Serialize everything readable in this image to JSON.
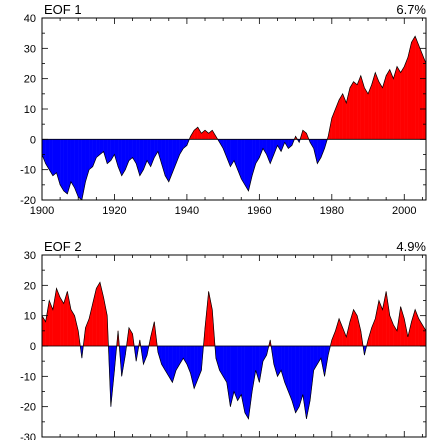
{
  "chart_data": [
    {
      "type": "area",
      "panel_title": "EOF 1",
      "variance_label": "6.7%",
      "xlim": [
        1900,
        2006
      ],
      "ylim": [
        -20,
        40
      ],
      "x_ticks": [
        1900,
        1920,
        1940,
        1960,
        1980,
        2000
      ],
      "y_ticks": [
        -20,
        -10,
        0,
        10,
        20,
        30,
        40
      ],
      "show_x_tick_labels": true,
      "positive_color": "#ff0000",
      "negative_color": "#0000ff",
      "series": [
        {
          "x": [
            1900,
            1901,
            1902,
            1903,
            1904,
            1905,
            1906,
            1907,
            1908,
            1909,
            1910,
            1911,
            1912,
            1913,
            1914,
            1915,
            1916,
            1917,
            1918,
            1919,
            1920,
            1921,
            1922,
            1923,
            1924,
            1925,
            1926,
            1927,
            1928,
            1929,
            1930,
            1931,
            1932,
            1933,
            1934,
            1935,
            1936,
            1937,
            1938,
            1939,
            1940,
            1941,
            1942,
            1943,
            1944,
            1945,
            1946,
            1947,
            1948,
            1949,
            1950,
            1951,
            1952,
            1953,
            1954,
            1955,
            1956,
            1957,
            1958,
            1959,
            1960,
            1961,
            1962,
            1963,
            1964,
            1965,
            1966,
            1967,
            1968,
            1969,
            1970,
            1971,
            1972,
            1973,
            1974,
            1975,
            1976,
            1977,
            1978,
            1979,
            1980,
            1981,
            1982,
            1983,
            1984,
            1985,
            1986,
            1987,
            1988,
            1989,
            1990,
            1991,
            1992,
            1993,
            1994,
            1995,
            1996,
            1997,
            1998,
            1999,
            2000,
            2001,
            2002,
            2003,
            2004,
            2005,
            2006
          ],
          "y": [
            -5,
            -8,
            -10,
            -12,
            -11,
            -15,
            -17,
            -18,
            -14,
            -16,
            -19,
            -20,
            -14,
            -10,
            -9,
            -6,
            -5,
            -4,
            -8,
            -7,
            -5,
            -9,
            -12,
            -10,
            -7,
            -6,
            -8,
            -12,
            -10,
            -7,
            -9,
            -6,
            -4,
            -8,
            -12,
            -14,
            -11,
            -8,
            -5,
            -3,
            -2,
            1,
            3,
            4,
            2,
            3,
            2,
            3,
            1,
            -1,
            -3,
            -6,
            -9,
            -7,
            -10,
            -13,
            -15,
            -17,
            -12,
            -8,
            -6,
            -3,
            -5,
            -8,
            -5,
            -2,
            -4,
            -1,
            -3,
            -2,
            1,
            -1,
            3,
            2,
            -1,
            -3,
            -8,
            -6,
            -3,
            1,
            7,
            10,
            13,
            15,
            12,
            17,
            19,
            18,
            21,
            17,
            15,
            18,
            22,
            19,
            17,
            21,
            23,
            20,
            24,
            22,
            24,
            27,
            32,
            34,
            31,
            28,
            25
          ]
        }
      ]
    },
    {
      "type": "area",
      "panel_title": "EOF 2",
      "variance_label": "4.9%",
      "xlim": [
        1900,
        2006
      ],
      "ylim": [
        -30,
        30
      ],
      "x_ticks": [
        1900,
        1920,
        1940,
        1960,
        1980,
        2000
      ],
      "y_ticks": [
        -30,
        -20,
        -10,
        0,
        10,
        20,
        30
      ],
      "show_x_tick_labels": false,
      "positive_color": "#ff0000",
      "negative_color": "#0000ff",
      "series": [
        {
          "x": [
            1900,
            1901,
            1902,
            1903,
            1904,
            1905,
            1906,
            1907,
            1908,
            1909,
            1910,
            1911,
            1912,
            1913,
            1914,
            1915,
            1916,
            1917,
            1918,
            1919,
            1920,
            1921,
            1922,
            1923,
            1924,
            1925,
            1926,
            1927,
            1928,
            1929,
            1930,
            1931,
            1932,
            1933,
            1934,
            1935,
            1936,
            1937,
            1938,
            1939,
            1940,
            1941,
            1942,
            1943,
            1944,
            1945,
            1946,
            1947,
            1948,
            1949,
            1950,
            1951,
            1952,
            1953,
            1954,
            1955,
            1956,
            1957,
            1958,
            1959,
            1960,
            1961,
            1962,
            1963,
            1964,
            1965,
            1966,
            1967,
            1968,
            1969,
            1970,
            1971,
            1972,
            1973,
            1974,
            1975,
            1976,
            1977,
            1978,
            1979,
            1980,
            1981,
            1982,
            1983,
            1984,
            1985,
            1986,
            1987,
            1988,
            1989,
            1990,
            1991,
            1992,
            1993,
            1994,
            1995,
            1996,
            1997,
            1998,
            1999,
            2000,
            2001,
            2002,
            2003,
            2004,
            2005,
            2006
          ],
          "y": [
            10,
            8,
            15,
            12,
            19,
            16,
            14,
            18,
            12,
            10,
            5,
            -4,
            6,
            9,
            14,
            19,
            21,
            16,
            10,
            -20,
            -8,
            5,
            -10,
            -3,
            6,
            4,
            -5,
            2,
            -6,
            -3,
            3,
            8,
            -2,
            -6,
            -8,
            -10,
            -12,
            -8,
            -6,
            -4,
            -6,
            -9,
            -14,
            -11,
            -8,
            6,
            18,
            12,
            -4,
            -8,
            -10,
            -12,
            -20,
            -15,
            -18,
            -16,
            -22,
            -24,
            -15,
            -8,
            -12,
            -5,
            -3,
            2,
            -6,
            -10,
            -8,
            -12,
            -15,
            -18,
            -22,
            -20,
            -16,
            -24,
            -18,
            -8,
            -6,
            -4,
            -10,
            -3,
            2,
            5,
            9,
            6,
            3,
            8,
            12,
            10,
            5,
            -3,
            2,
            6,
            9,
            15,
            12,
            18,
            10,
            7,
            5,
            13,
            9,
            3,
            8,
            12,
            9,
            7,
            5
          ]
        }
      ]
    }
  ]
}
